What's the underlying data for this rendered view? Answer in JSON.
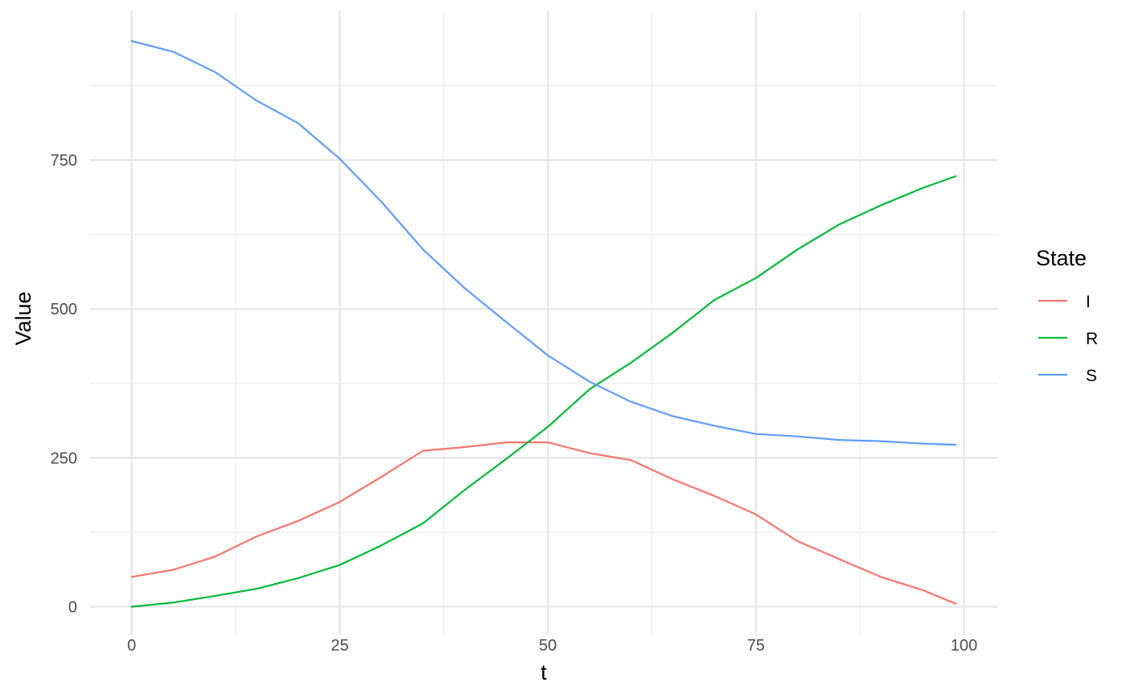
{
  "chart_data": {
    "type": "line",
    "xlabel": "t",
    "ylabel": "Value",
    "xlim": [
      -5,
      104
    ],
    "ylim": [
      -48,
      1000
    ],
    "x_ticks": [
      0,
      25,
      50,
      75,
      100
    ],
    "x_tick_labels": [
      "0",
      "25",
      "50",
      "75",
      "100"
    ],
    "y_ticks": [
      0,
      250,
      500,
      750
    ],
    "y_tick_labels": [
      "0",
      "250",
      "500",
      "750"
    ],
    "grid": true,
    "legend": {
      "title": "State",
      "position": "right"
    },
    "series": [
      {
        "name": "I",
        "color": "#F8766D",
        "x": [
          0,
          5,
          10,
          15,
          20,
          25,
          30,
          35,
          40,
          45,
          50,
          55,
          60,
          65,
          70,
          75,
          80,
          85,
          90,
          95,
          99
        ],
        "y": [
          50,
          62,
          84,
          118,
          144,
          176,
          218,
          262,
          268,
          276,
          276,
          258,
          246,
          214,
          186,
          155,
          110,
          80,
          50,
          28,
          5
        ]
      },
      {
        "name": "R",
        "color": "#00BA38",
        "x": [
          0,
          5,
          10,
          15,
          20,
          25,
          30,
          35,
          40,
          45,
          50,
          55,
          60,
          65,
          70,
          75,
          80,
          85,
          90,
          95,
          99
        ],
        "y": [
          0,
          7,
          18,
          30,
          48,
          70,
          103,
          140,
          196,
          248,
          302,
          365,
          410,
          460,
          515,
          552,
          600,
          642,
          674,
          703,
          723
        ]
      },
      {
        "name": "S",
        "color": "#619CFF",
        "x": [
          0,
          5,
          10,
          15,
          20,
          25,
          30,
          35,
          40,
          45,
          50,
          55,
          60,
          65,
          70,
          75,
          80,
          85,
          90,
          95,
          99
        ],
        "y": [
          950,
          932,
          898,
          850,
          812,
          752,
          680,
          600,
          535,
          478,
          422,
          378,
          344,
          320,
          304,
          290,
          286,
          280,
          278,
          274,
          272
        ]
      }
    ]
  }
}
